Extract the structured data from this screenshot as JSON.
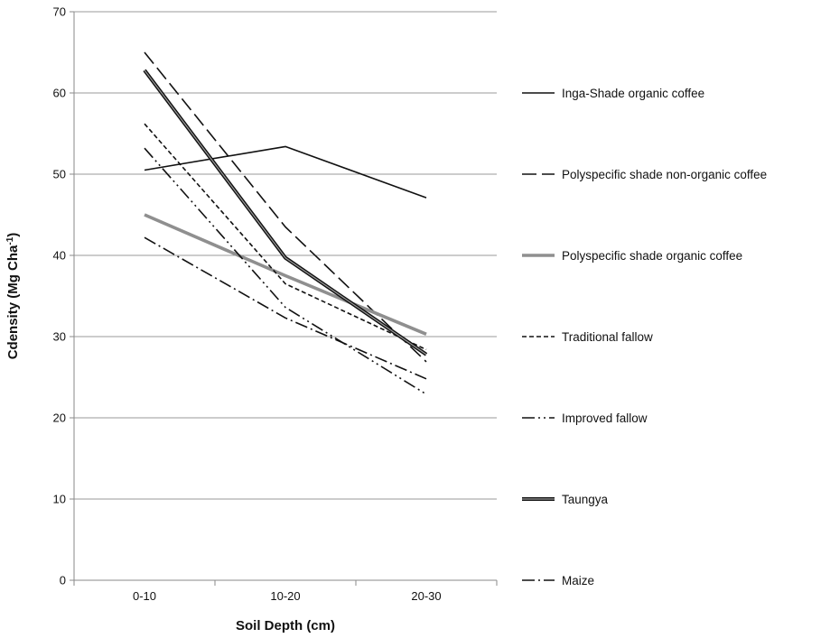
{
  "chart_data": {
    "type": "line",
    "xlabel": "Soil Depth (cm)",
    "ylabel": "Cdensity (Mg Cha",
    "ylabel_superscript": "-1",
    "ylabel_close": ")",
    "categories": [
      "0-10",
      "10-20",
      "20-30"
    ],
    "ylim": [
      0,
      70
    ],
    "yticks": [
      0,
      10,
      20,
      30,
      40,
      50,
      60,
      70
    ],
    "grid": true,
    "legend_position": "right",
    "series": [
      {
        "name": "Inga-Shade organic coffee",
        "values": [
          50.5,
          53.4,
          47.1
        ],
        "style": "solid"
      },
      {
        "name": "Polyspecific shade non-organic coffee",
        "values": [
          65.0,
          43.5,
          26.9
        ],
        "style": "long-dash"
      },
      {
        "name": "Polyspecific shade organic coffee",
        "values": [
          45.0,
          37.5,
          30.3
        ],
        "style": "solid-gray-thick"
      },
      {
        "name": "Traditional fallow",
        "values": [
          56.2,
          36.5,
          28.4
        ],
        "style": "short-dash"
      },
      {
        "name": "Improved fallow",
        "values": [
          53.2,
          33.6,
          22.9
        ],
        "style": "dash-dot-dot"
      },
      {
        "name": "Taungya",
        "values": [
          62.8,
          39.7,
          27.8
        ],
        "style": "double-thick"
      },
      {
        "name": "Maize",
        "values": [
          42.2,
          32.3,
          24.8
        ],
        "style": "dash-dot"
      }
    ]
  }
}
